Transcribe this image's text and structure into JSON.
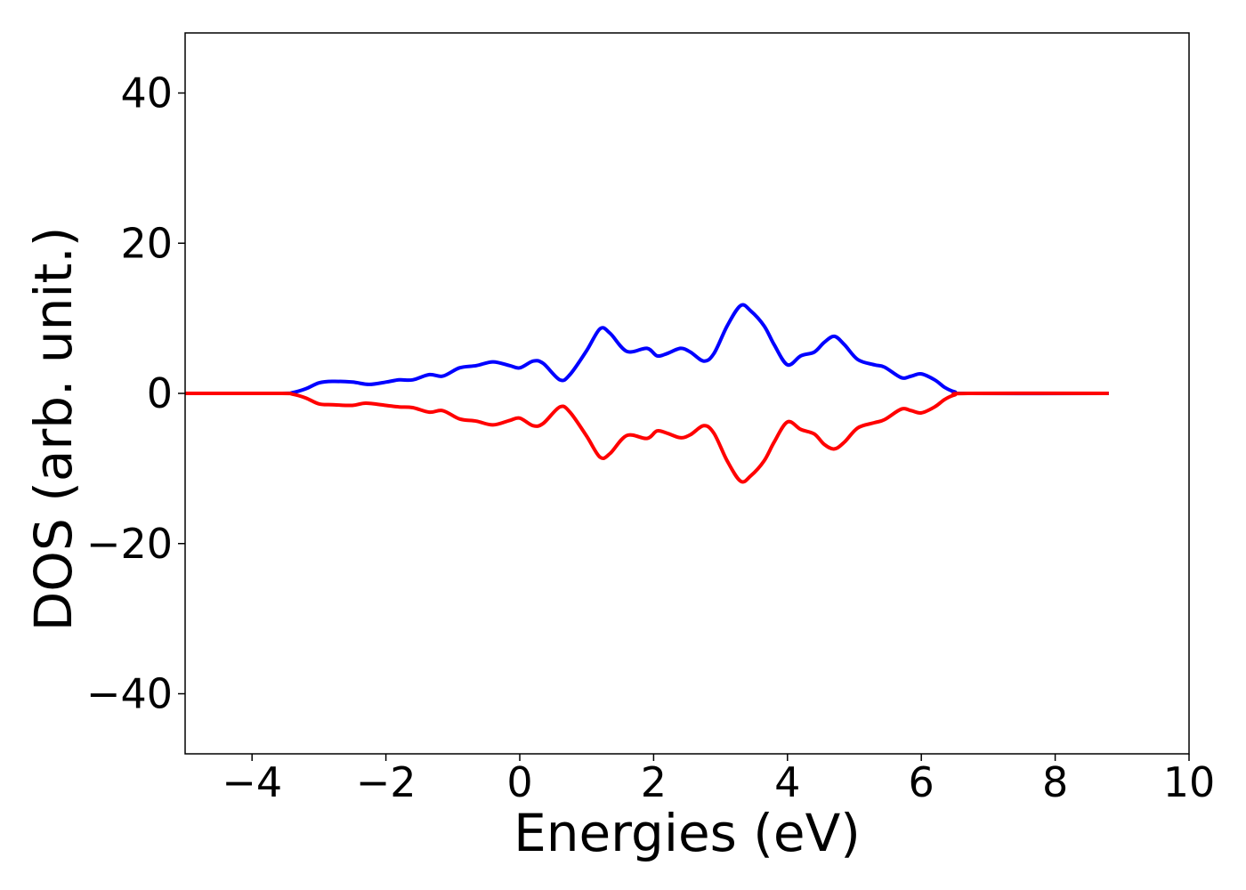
{
  "chart_data": {
    "type": "line",
    "title": "",
    "xlabel": "Energies (eV)",
    "ylabel": "DOS (arb. unit.)",
    "xlim": [
      -5,
      10
    ],
    "ylim": [
      -48,
      48
    ],
    "xticks": [
      {
        "value": -4,
        "label": "−4"
      },
      {
        "value": -2,
        "label": "−2"
      },
      {
        "value": 0,
        "label": "0"
      },
      {
        "value": 2,
        "label": "2"
      },
      {
        "value": 4,
        "label": "4"
      },
      {
        "value": 6,
        "label": "6"
      },
      {
        "value": 8,
        "label": "8"
      },
      {
        "value": 10,
        "label": "10"
      }
    ],
    "yticks": [
      {
        "value": 40,
        "label": "40"
      },
      {
        "value": 20,
        "label": "20"
      },
      {
        "value": 0,
        "label": "0"
      },
      {
        "value": -20,
        "label": "−20"
      },
      {
        "value": -40,
        "label": "−40"
      }
    ],
    "grid": false,
    "legend": "none",
    "series": [
      {
        "color": "#0000ff",
        "points": [
          [
            -5.0,
            0.0
          ],
          [
            -3.6,
            0.0
          ],
          [
            -3.4,
            0.1
          ],
          [
            -3.2,
            0.6
          ],
          [
            -3.0,
            1.4
          ],
          [
            -2.8,
            1.6
          ],
          [
            -2.5,
            1.5
          ],
          [
            -2.25,
            1.2
          ],
          [
            -2.0,
            1.5
          ],
          [
            -1.8,
            1.8
          ],
          [
            -1.6,
            1.8
          ],
          [
            -1.35,
            2.5
          ],
          [
            -1.15,
            2.3
          ],
          [
            -0.9,
            3.4
          ],
          [
            -0.65,
            3.7
          ],
          [
            -0.4,
            4.2
          ],
          [
            -0.15,
            3.7
          ],
          [
            0.0,
            3.4
          ],
          [
            0.2,
            4.3
          ],
          [
            0.35,
            4.0
          ],
          [
            0.6,
            1.8
          ],
          [
            0.75,
            2.5
          ],
          [
            1.0,
            5.7
          ],
          [
            1.2,
            8.6
          ],
          [
            1.35,
            8.0
          ],
          [
            1.6,
            5.6
          ],
          [
            1.9,
            6.0
          ],
          [
            2.05,
            5.0
          ],
          [
            2.2,
            5.3
          ],
          [
            2.4,
            6.0
          ],
          [
            2.55,
            5.5
          ],
          [
            2.75,
            4.3
          ],
          [
            2.9,
            5.3
          ],
          [
            3.1,
            9.0
          ],
          [
            3.3,
            11.7
          ],
          [
            3.45,
            11.0
          ],
          [
            3.65,
            9.0
          ],
          [
            3.8,
            6.5
          ],
          [
            4.0,
            3.8
          ],
          [
            4.2,
            5.0
          ],
          [
            4.4,
            5.5
          ],
          [
            4.55,
            6.8
          ],
          [
            4.7,
            7.6
          ],
          [
            4.85,
            6.5
          ],
          [
            5.05,
            4.5
          ],
          [
            5.3,
            3.8
          ],
          [
            5.45,
            3.5
          ],
          [
            5.7,
            2.1
          ],
          [
            5.85,
            2.3
          ],
          [
            6.0,
            2.6
          ],
          [
            6.2,
            1.8
          ],
          [
            6.35,
            0.8
          ],
          [
            6.5,
            0.2
          ],
          [
            6.7,
            0.0
          ],
          [
            8.8,
            0.0
          ]
        ]
      },
      {
        "color": "#ff0000",
        "points": [
          [
            -5.0,
            0.0
          ],
          [
            -3.6,
            0.0
          ],
          [
            -3.4,
            -0.1
          ],
          [
            -3.2,
            -0.6
          ],
          [
            -3.0,
            -1.4
          ],
          [
            -2.8,
            -1.5
          ],
          [
            -2.5,
            -1.6
          ],
          [
            -2.3,
            -1.3
          ],
          [
            -2.0,
            -1.6
          ],
          [
            -1.8,
            -1.8
          ],
          [
            -1.6,
            -1.9
          ],
          [
            -1.35,
            -2.5
          ],
          [
            -1.15,
            -2.3
          ],
          [
            -0.9,
            -3.4
          ],
          [
            -0.65,
            -3.7
          ],
          [
            -0.4,
            -4.2
          ],
          [
            -0.15,
            -3.6
          ],
          [
            0.0,
            -3.3
          ],
          [
            0.2,
            -4.3
          ],
          [
            0.35,
            -4.0
          ],
          [
            0.6,
            -1.8
          ],
          [
            0.75,
            -2.5
          ],
          [
            1.0,
            -5.7
          ],
          [
            1.2,
            -8.5
          ],
          [
            1.35,
            -8.0
          ],
          [
            1.6,
            -5.6
          ],
          [
            1.9,
            -6.0
          ],
          [
            2.05,
            -5.0
          ],
          [
            2.2,
            -5.3
          ],
          [
            2.4,
            -5.9
          ],
          [
            2.55,
            -5.5
          ],
          [
            2.75,
            -4.3
          ],
          [
            2.9,
            -5.3
          ],
          [
            3.1,
            -9.0
          ],
          [
            3.3,
            -11.7
          ],
          [
            3.45,
            -11.0
          ],
          [
            3.65,
            -9.0
          ],
          [
            3.8,
            -6.5
          ],
          [
            4.0,
            -3.8
          ],
          [
            4.2,
            -4.8
          ],
          [
            4.4,
            -5.4
          ],
          [
            4.55,
            -6.8
          ],
          [
            4.7,
            -7.4
          ],
          [
            4.85,
            -6.5
          ],
          [
            5.05,
            -4.6
          ],
          [
            5.3,
            -3.9
          ],
          [
            5.45,
            -3.5
          ],
          [
            5.7,
            -2.1
          ],
          [
            5.85,
            -2.3
          ],
          [
            6.0,
            -2.6
          ],
          [
            6.2,
            -1.8
          ],
          [
            6.35,
            -0.8
          ],
          [
            6.5,
            -0.2
          ],
          [
            6.7,
            0.0
          ],
          [
            8.8,
            0.0
          ]
        ]
      }
    ]
  }
}
